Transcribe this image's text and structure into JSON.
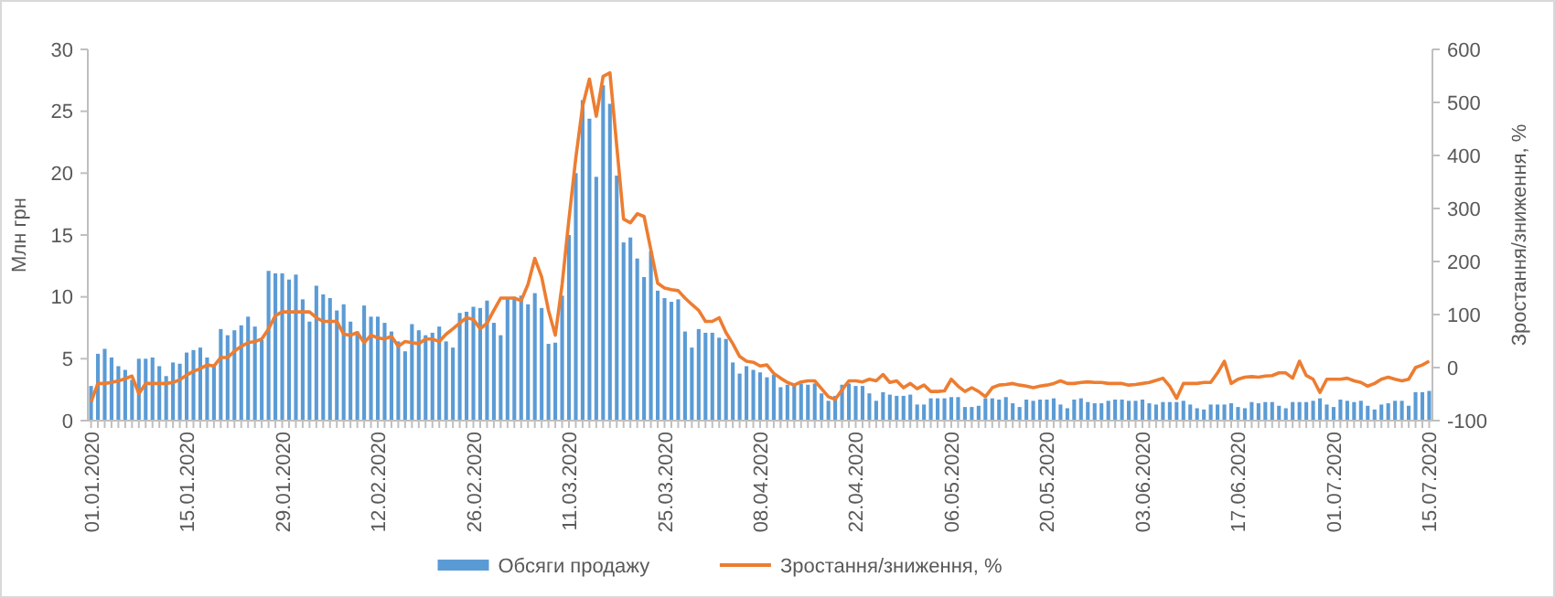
{
  "chart_data": {
    "type": "bar",
    "ylabel": "Млн грн",
    "y2label": "Зростання/зниження, %",
    "categories": [
      "01.01.2020",
      null,
      null,
      null,
      null,
      null,
      null,
      null,
      null,
      null,
      null,
      null,
      null,
      null,
      "15.01.2020",
      null,
      null,
      null,
      null,
      null,
      null,
      null,
      null,
      null,
      null,
      null,
      null,
      null,
      "29.01.2020",
      null,
      null,
      null,
      null,
      null,
      null,
      null,
      null,
      null,
      null,
      null,
      null,
      null,
      "12.02.2020",
      null,
      null,
      null,
      null,
      null,
      null,
      null,
      null,
      null,
      null,
      null,
      null,
      null,
      "26.02.2020",
      null,
      null,
      null,
      null,
      null,
      null,
      null,
      null,
      null,
      null,
      null,
      null,
      null,
      "11.03.2020",
      null,
      null,
      null,
      null,
      null,
      null,
      null,
      null,
      null,
      null,
      null,
      null,
      null,
      "25.03.2020",
      null,
      null,
      null,
      null,
      null,
      null,
      null,
      null,
      null,
      null,
      null,
      null,
      null,
      "08.04.2020",
      null,
      null,
      null,
      null,
      null,
      null,
      null,
      null,
      null,
      null,
      null,
      null,
      null,
      "22.04.2020",
      null,
      null,
      null,
      null,
      null,
      null,
      null,
      null,
      null,
      null,
      null,
      null,
      null,
      "06.05.2020",
      null,
      null,
      null,
      null,
      null,
      null,
      null,
      null,
      null,
      null,
      null,
      null,
      null,
      "20.05.2020",
      null,
      null,
      null,
      null,
      null,
      null,
      null,
      null,
      null,
      null,
      null,
      null,
      null,
      "03.06.2020",
      null,
      null,
      null,
      null,
      null,
      null,
      null,
      null,
      null,
      null,
      null,
      null,
      null,
      "17.06.2020",
      null,
      null,
      null,
      null,
      null,
      null,
      null,
      null,
      null,
      null,
      null,
      null,
      null,
      "01.07.2020",
      null,
      null,
      null,
      null,
      null,
      null,
      null,
      null,
      null,
      null,
      null,
      null,
      null,
      "15.07.2020"
    ],
    "series": [
      {
        "name": "Обсяги продажу",
        "color": "#5b9bd5",
        "values": [
          2.8,
          5.4,
          5.8,
          5.1,
          4.4,
          4.1,
          3.3,
          5.0,
          5.0,
          5.1,
          4.4,
          3.6,
          4.7,
          4.6,
          5.5,
          5.7,
          5.9,
          5.1,
          4.5,
          7.4,
          6.9,
          7.3,
          7.7,
          8.4,
          7.6,
          6.5,
          12.1,
          11.9,
          11.9,
          11.4,
          11.8,
          9.8,
          8.0,
          10.9,
          10.2,
          9.9,
          8.9,
          9.4,
          8.0,
          7.2,
          9.3,
          8.4,
          8.4,
          7.9,
          7.2,
          6.4,
          5.6,
          7.8,
          7.3,
          6.9,
          7.1,
          7.6,
          6.4,
          5.9,
          8.7,
          8.8,
          9.2,
          9.1,
          9.7,
          7.9,
          6.9,
          9.9,
          10.0,
          10.1,
          9.4,
          10.3,
          9.1,
          6.2,
          6.3,
          10.1,
          15.0,
          20.0,
          25.9,
          24.4,
          19.7,
          27.1,
          25.6,
          19.8,
          14.4,
          14.8,
          13.1,
          11.6,
          13.7,
          10.5,
          9.9,
          9.6,
          9.8,
          7.2,
          5.9,
          7.4,
          7.1,
          7.1,
          6.7,
          6.6,
          4.7,
          3.8,
          4.4,
          4.1,
          3.9,
          3.5,
          3.7,
          2.7,
          2.9,
          2.9,
          3.0,
          2.9,
          3.0,
          2.2,
          1.6,
          2.0,
          2.9,
          3.0,
          2.8,
          2.8,
          2.2,
          1.6,
          2.3,
          2.1,
          2.0,
          2.0,
          2.1,
          1.3,
          1.3,
          1.8,
          1.8,
          1.8,
          1.9,
          1.9,
          1.1,
          1.1,
          1.2,
          1.8,
          1.8,
          1.7,
          1.9,
          1.4,
          1.1,
          1.7,
          1.6,
          1.7,
          1.7,
          1.8,
          1.3,
          1.0,
          1.7,
          1.8,
          1.5,
          1.4,
          1.4,
          1.6,
          1.7,
          1.7,
          1.6,
          1.6,
          1.7,
          1.4,
          1.3,
          1.5,
          1.5,
          1.5,
          1.6,
          1.3,
          1.0,
          0.9,
          1.3,
          1.3,
          1.3,
          1.4,
          1.1,
          1.0,
          1.5,
          1.4,
          1.5,
          1.5,
          1.2,
          1.0,
          1.5,
          1.5,
          1.5,
          1.6,
          1.8,
          1.3,
          1.1,
          1.7,
          1.6,
          1.5,
          1.6,
          1.2,
          0.9,
          1.3,
          1.4,
          1.6,
          1.6,
          1.2,
          2.3,
          2.3,
          2.4
        ]
      },
      {
        "name": "Зростання/зниження, %",
        "type": "line",
        "axis": "y2",
        "color": "#ed7d31",
        "values": [
          -65,
          -30,
          -30,
          -28,
          -25,
          -21,
          -16,
          -49,
          -30,
          -30,
          -30,
          -30,
          -28,
          -23,
          -14,
          -7,
          -2,
          5,
          3,
          19,
          19,
          31,
          40,
          47,
          49,
          54,
          73,
          98,
          105,
          105,
          105,
          105,
          105,
          94,
          87,
          87,
          87,
          63,
          61,
          66,
          47,
          61,
          56,
          54,
          59,
          40,
          49,
          47,
          45,
          54,
          54,
          49,
          63,
          73,
          84,
          94,
          91,
          73,
          84,
          108,
          131,
          131,
          131,
          126,
          157,
          206,
          171,
          108,
          61,
          157,
          280,
          395,
          493,
          544,
          474,
          549,
          556,
          418,
          280,
          273,
          290,
          285,
          222,
          159,
          150,
          147,
          145,
          131,
          119,
          108,
          87,
          87,
          94,
          66,
          45,
          21,
          12,
          10,
          3,
          5,
          -11,
          -20,
          -28,
          -33,
          -27,
          -25,
          -25,
          -40,
          -55,
          -60,
          -42,
          -25,
          -25,
          -27,
          -22,
          -25,
          -13,
          -28,
          -25,
          -38,
          -30,
          -40,
          -33,
          -45,
          -45,
          -44,
          -22,
          -35,
          -45,
          -38,
          -45,
          -55,
          -38,
          -33,
          -32,
          -30,
          -33,
          -35,
          -38,
          -35,
          -33,
          -30,
          -25,
          -30,
          -30,
          -28,
          -27,
          -28,
          -28,
          -30,
          -30,
          -30,
          -33,
          -32,
          -30,
          -28,
          -24,
          -20,
          -35,
          -58,
          -30,
          -30,
          -30,
          -28,
          -28,
          -10,
          12,
          -30,
          -22,
          -18,
          -17,
          -18,
          -16,
          -15,
          -10,
          -10,
          -20,
          12,
          -15,
          -22,
          -47,
          -22,
          -22,
          -22,
          -20,
          -25,
          -28,
          -35,
          -30,
          -22,
          -18,
          -22,
          -25,
          -22,
          0,
          5,
          12
        ]
      }
    ],
    "ylim": [
      0,
      30
    ],
    "yticks": [
      0,
      5,
      10,
      15,
      20,
      25,
      30
    ],
    "y2lim": [
      -100,
      600
    ],
    "y2ticks": [
      -100,
      0,
      100,
      200,
      300,
      400,
      500,
      600
    ],
    "grid": false,
    "legend": "bottom"
  }
}
